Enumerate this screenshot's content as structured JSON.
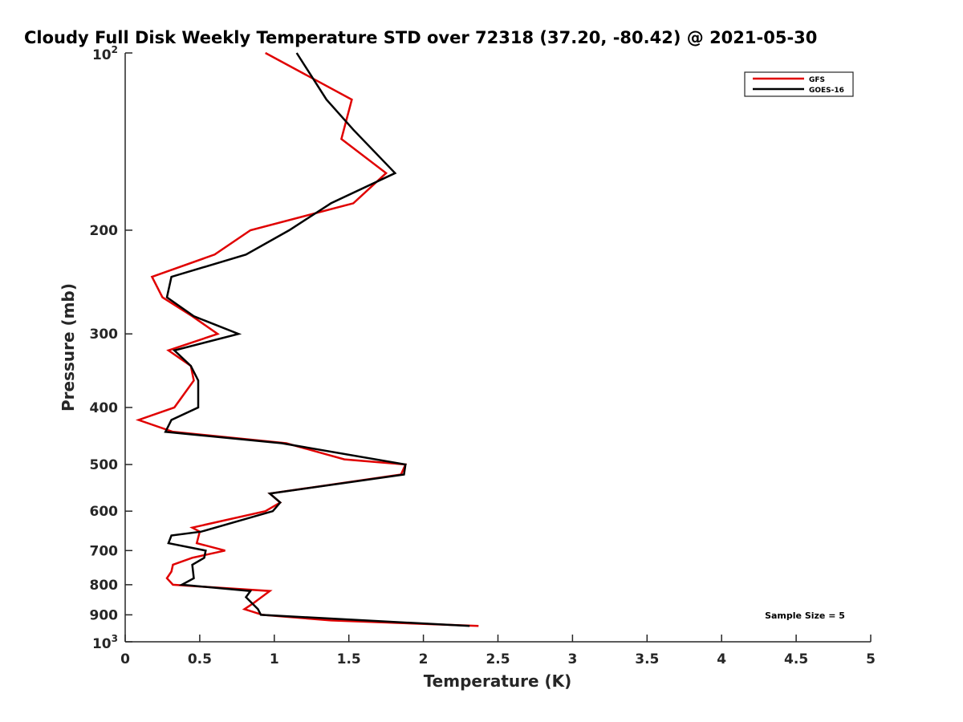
{
  "chart_data": {
    "type": "line",
    "title": "Cloudy Full Disk Weekly Temperature STD over 72318 (37.20, -80.42) @ 2021-05-30",
    "xlabel": "Temperature (K)",
    "ylabel": "Pressure (mb)",
    "xlim": [
      0,
      5
    ],
    "ylim": [
      100,
      1000
    ],
    "yscale": "log",
    "yreversed": true,
    "grid": false,
    "legend_position": "top-right",
    "x_ticks": [
      "0",
      "0.5",
      "1",
      "1.5",
      "2",
      "2.5",
      "3",
      "3.5",
      "4",
      "4.5",
      "5"
    ],
    "x_tick_values": [
      0,
      0.5,
      1,
      1.5,
      2,
      2.5,
      3,
      3.5,
      4,
      4.5,
      5
    ],
    "y_ticks": [
      {
        "value": 100,
        "base": "10",
        "exp": "2"
      },
      {
        "value": 200,
        "label": "200"
      },
      {
        "value": 300,
        "label": "300"
      },
      {
        "value": 400,
        "label": "400"
      },
      {
        "value": 500,
        "label": "500"
      },
      {
        "value": 600,
        "label": "600"
      },
      {
        "value": 700,
        "label": "700"
      },
      {
        "value": 800,
        "label": "800"
      },
      {
        "value": 900,
        "label": "900"
      },
      {
        "value": 1000,
        "base": "10",
        "exp": "3"
      }
    ],
    "annotation": "Sample Size = 5",
    "series": [
      {
        "name": "GFS",
        "color": "#e00000",
        "x": [
          0.94,
          1.52,
          1.45,
          1.75,
          1.53,
          0.84,
          0.6,
          0.18,
          0.25,
          0.45,
          0.62,
          0.29,
          0.44,
          0.46,
          0.33,
          0.09,
          0.32,
          1.08,
          1.47,
          1.88,
          1.85,
          0.97,
          1.04,
          0.94,
          0.45,
          0.5,
          0.48,
          0.67,
          0.45,
          0.32,
          0.31,
          0.28,
          0.32,
          0.97,
          0.86,
          0.8,
          0.92,
          1.38,
          2.37
        ],
        "p": [
          100,
          120,
          140,
          160,
          180,
          200,
          220,
          240,
          260,
          280,
          300,
          320,
          340,
          360,
          400,
          420,
          440,
          460,
          490,
          500,
          520,
          560,
          580,
          600,
          640,
          650,
          680,
          700,
          720,
          740,
          760,
          780,
          800,
          820,
          860,
          880,
          900,
          920,
          940
        ]
      },
      {
        "name": "GOES-16",
        "color": "#000000",
        "x": [
          1.15,
          1.35,
          1.53,
          1.81,
          1.38,
          1.1,
          0.81,
          0.31,
          0.28,
          0.46,
          0.76,
          0.33,
          0.44,
          0.49,
          0.49,
          0.31,
          0.27,
          1.05,
          1.88,
          1.87,
          0.97,
          1.04,
          0.99,
          0.51,
          0.31,
          0.29,
          0.54,
          0.53,
          0.45,
          0.46,
          0.38,
          0.84,
          0.81,
          0.89,
          0.91,
          2.31
        ],
        "p": [
          100,
          120,
          135,
          160,
          180,
          200,
          220,
          240,
          260,
          280,
          300,
          320,
          340,
          360,
          400,
          420,
          440,
          460,
          500,
          520,
          560,
          580,
          600,
          650,
          660,
          680,
          700,
          720,
          740,
          780,
          800,
          820,
          840,
          880,
          900,
          940
        ]
      }
    ]
  }
}
